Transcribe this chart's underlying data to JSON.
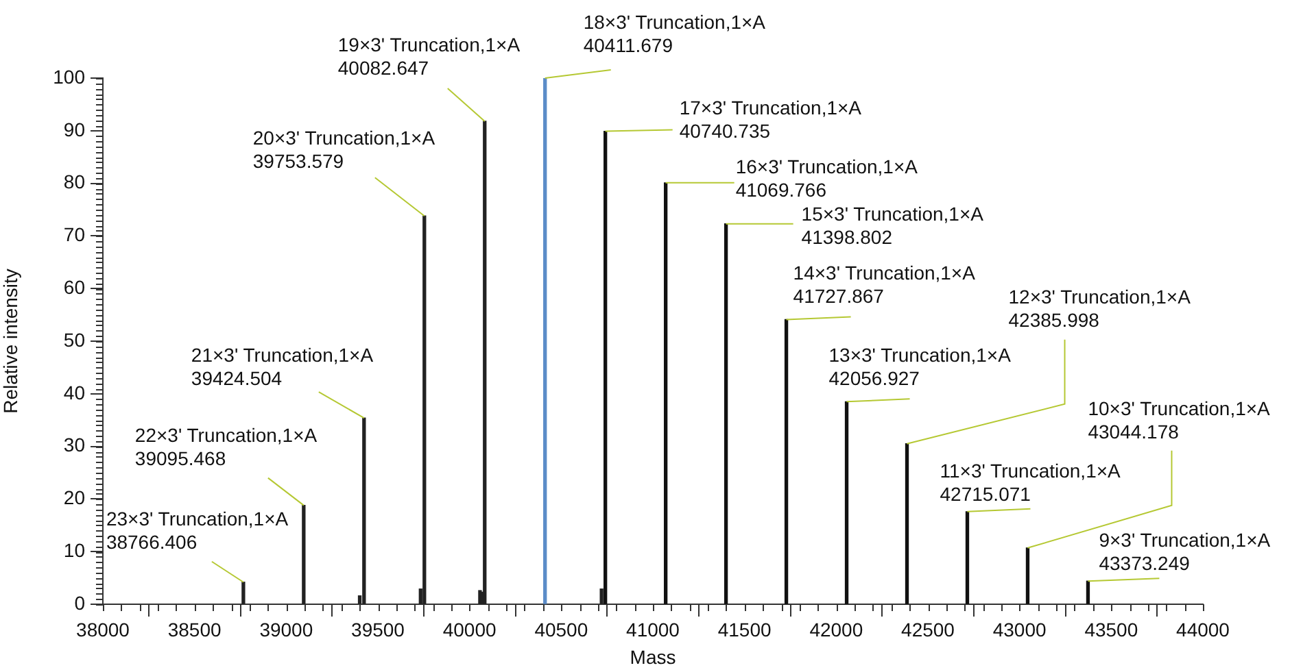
{
  "chart_data": {
    "type": "bar",
    "xlabel": "Mass",
    "ylabel": "Relative intensity",
    "x": [
      38766.406,
      39095.468,
      39401,
      39424.504,
      39733,
      39753.579,
      40057,
      40069,
      40082.647,
      40411.679,
      40720,
      40740.735,
      41069.766,
      41398.802,
      41727.867,
      42056.927,
      42385.998,
      42715.071,
      43044.178,
      43373.249
    ],
    "values": [
      4.2,
      18.8,
      1.6,
      35.4,
      2.9,
      73.8,
      2.6,
      2.3,
      91.8,
      100,
      2.9,
      89.9,
      80.1,
      72.3,
      54.1,
      38.5,
      30.5,
      17.6,
      10.7,
      4.4
    ],
    "colors": [
      "#222222",
      "#222222",
      "#222222",
      "#222222",
      "#222222",
      "#222222",
      "#222222",
      "#222222",
      "#222222",
      "#5b8cc8",
      "#222222",
      "#111111",
      "#111111",
      "#111111",
      "#111111",
      "#111111",
      "#111111",
      "#111111",
      "#111111",
      "#111111"
    ],
    "xlim": [
      38000,
      44000
    ],
    "xticks": [
      38000,
      38500,
      39000,
      39500,
      40000,
      40500,
      41000,
      41500,
      42000,
      42500,
      43000,
      43500,
      44000
    ],
    "ylim": [
      0,
      100
    ],
    "yticks": [
      0,
      10,
      20,
      30,
      40,
      50,
      60,
      70,
      80,
      90,
      100
    ],
    "grid": false,
    "legend": false,
    "annotations": [
      {
        "text": "23×3' Truncation,1×A\n38766.406",
        "x": 38766.406,
        "y": 4.2
      },
      {
        "text": "22×3' Truncation,1×A\n39095.468",
        "x": 39095.468,
        "y": 18.8
      },
      {
        "text": "21×3' Truncation,1×A\n39424.504",
        "x": 39424.504,
        "y": 35.4
      },
      {
        "text": "20×3' Truncation,1×A\n39753.579",
        "x": 39753.579,
        "y": 73.8
      },
      {
        "text": "19×3' Truncation,1×A\n40082.647",
        "x": 40082.647,
        "y": 91.8
      },
      {
        "text": "18×3' Truncation,1×A\n40411.679",
        "x": 40411.679,
        "y": 100
      },
      {
        "text": "17×3' Truncation,1×A\n40740.735",
        "x": 40740.735,
        "y": 89.9
      },
      {
        "text": "16×3' Truncation,1×A\n41069.766",
        "x": 41069.766,
        "y": 80.1
      },
      {
        "text": "15×3' Truncation,1×A\n41398.802",
        "x": 41398.802,
        "y": 72.3
      },
      {
        "text": "14×3' Truncation,1×A\n41727.867",
        "x": 41727.867,
        "y": 54.1
      },
      {
        "text": "13×3' Truncation,1×A\n42056.927",
        "x": 42056.927,
        "y": 38.5
      },
      {
        "text": "12×3' Truncation,1×A\n42385.998",
        "x": 42385.998,
        "y": 30.5
      },
      {
        "text": "11×3' Truncation,1×A\n42715.071",
        "x": 42715.071,
        "y": 17.6
      },
      {
        "text": "10×3' Truncation,1×A\n43044.178",
        "x": 43044.178,
        "y": 10.7
      },
      {
        "text": "9×3' Truncation,1×A\n43373.249",
        "x": 43373.249,
        "y": 4.4
      }
    ]
  }
}
